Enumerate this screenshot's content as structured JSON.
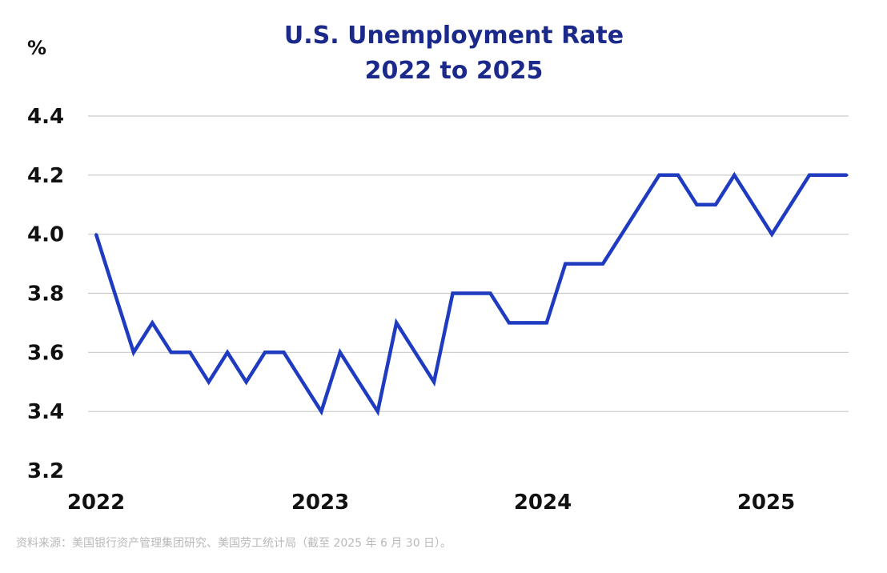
{
  "chart_data": {
    "type": "line",
    "title": "U.S. Unemployment Rate",
    "subtitle": "2022 to 2025",
    "ylabel": "%",
    "xlabel": "",
    "y_ticks": [
      "4.4",
      "4.2",
      "4.0",
      "3.8",
      "3.6",
      "3.4",
      "3.2"
    ],
    "x_ticks": [
      "2022",
      "2023",
      "2024",
      "2025"
    ],
    "ylim": [
      3.2,
      4.4
    ],
    "grid": true,
    "legend": "none",
    "color": "#1f3bbf",
    "series": [
      {
        "values": [
          4.0,
          3.8,
          3.6,
          3.7,
          3.6,
          3.6,
          3.5,
          3.6,
          3.5,
          3.6,
          3.6,
          3.5,
          3.4,
          3.6,
          3.5,
          3.4,
          3.7,
          3.6,
          3.5,
          3.8,
          3.8,
          3.8,
          3.7,
          3.7,
          3.7,
          3.9,
          3.9,
          3.9,
          4.0,
          4.1,
          4.2,
          4.2,
          4.1,
          4.1,
          4.2,
          4.1,
          4.0,
          4.1,
          4.2,
          4.2,
          4.2
        ]
      }
    ]
  },
  "source_note": "资料来源：美国银行资产管理集团研究、美国劳工统计局（截至 2025 年 6 月 30 日）。"
}
